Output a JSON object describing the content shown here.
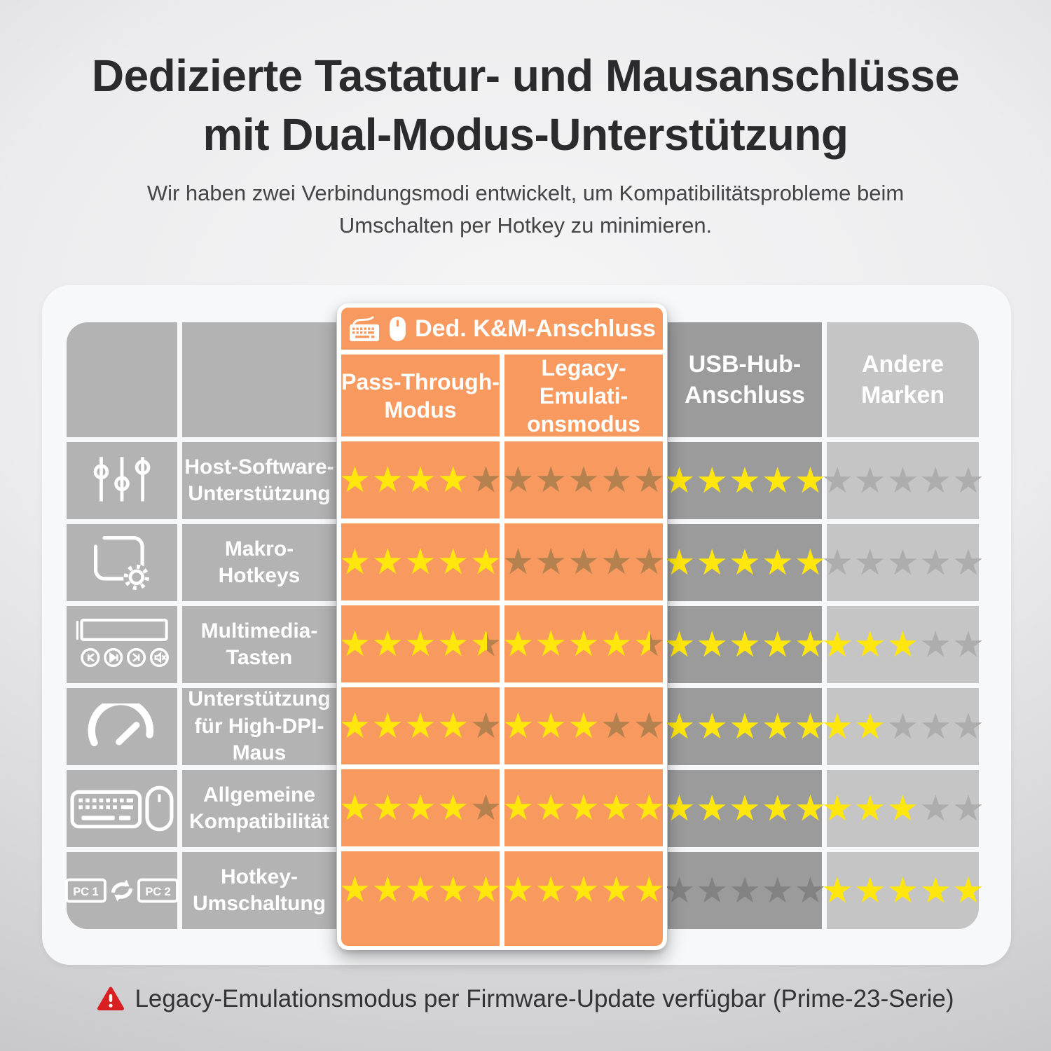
{
  "page": {
    "title_lines": [
      "Dedizierte Tastatur- und Mausanschlüsse",
      "mit Dual-Modus-Unterstützung"
    ],
    "subtitle_lines": [
      "Wir haben zwei Verbindungsmodi entwickelt, um Kompatibilitätsprobleme beim",
      "Umschalten per Hotkey zu minimieren."
    ],
    "footnote": "Legacy-Emulationsmodus per Firmware-Update verfügbar (Prime-23-Serie)",
    "footnote_icon": "warning-icon"
  },
  "colors": {
    "accent_orange": "#f8995f",
    "star_yellow": "#ffe60d",
    "muted_star_on_orange": "#b5814f",
    "muted_star_on_dark_gray": "#828283",
    "muted_star_on_light_gray": "#adadae",
    "cell_gray": "#b3b3b4",
    "usb_column_gray": "#9b9b9c",
    "other_column_gray": "#c5c5c6",
    "warning_red": "#d7201f"
  },
  "table": {
    "group_header": {
      "label": "Ded. K&M-Anschluss",
      "icons": [
        "keyboard-icon",
        "mouse-icon"
      ]
    },
    "columns": [
      {
        "id": "pt",
        "label_lines": [
          "Pass-Through-",
          "Modus"
        ],
        "style": "orange"
      },
      {
        "id": "legacy",
        "label_lines": [
          "Legacy-",
          "Emulati-",
          "onsmodus"
        ],
        "style": "orange"
      },
      {
        "id": "usb",
        "label_lines": [
          "USB-Hub-",
          "Anschluss"
        ],
        "style": "dark-gray"
      },
      {
        "id": "other",
        "label_lines": [
          "Andere",
          "Marken"
        ],
        "style": "light-gray"
      }
    ],
    "rating_max": 5,
    "rows": [
      {
        "icon": "sliders-icon",
        "label_lines": [
          "Host-Software-",
          "Unterstützung"
        ],
        "ratings": {
          "pt": 4,
          "legacy": 0,
          "usb": 5,
          "other": 0
        }
      },
      {
        "icon": "macro-gear-icon",
        "label_lines": [
          "Makro-",
          "Hotkeys"
        ],
        "ratings": {
          "pt": 5,
          "legacy": 0,
          "usb": 5,
          "other": 0
        }
      },
      {
        "icon": "multimedia-keys-icon",
        "label_lines": [
          "Multimedia-",
          "Tasten"
        ],
        "ratings": {
          "pt": 4.5,
          "legacy": 4.5,
          "usb": 5,
          "other": 3
        }
      },
      {
        "icon": "speedometer-icon",
        "label_lines": [
          "Unterstützung",
          "für High-DPI-",
          "Maus"
        ],
        "ratings": {
          "pt": 4,
          "legacy": 3,
          "usb": 5,
          "other": 2
        }
      },
      {
        "icon": "keyboard-mouse-icon",
        "label_lines": [
          "Allgemeine",
          "Kompatibilität"
        ],
        "ratings": {
          "pt": 4,
          "legacy": 5,
          "usb": 5,
          "other": 3
        }
      },
      {
        "icon": "pc-switch-icon",
        "label_lines": [
          "Hotkey-",
          "Umschaltung"
        ],
        "ratings": {
          "pt": 5,
          "legacy": 5,
          "usb": 0,
          "other": 5
        }
      }
    ]
  },
  "chart_data": {
    "type": "table",
    "title": "Dedizierte Tastatur- und Mausanschlüsse mit Dual-Modus-Unterstützung",
    "categories": [
      "Host-Software-Unterstützung",
      "Makro-Hotkeys",
      "Multimedia-Tasten",
      "Unterstützung für High-DPI-Maus",
      "Allgemeine Kompatibilität",
      "Hotkey-Umschaltung"
    ],
    "series": [
      {
        "name": "Ded. K&M-Anschluss – Pass-Through-Modus",
        "values": [
          4,
          5,
          4.5,
          4,
          4,
          5
        ]
      },
      {
        "name": "Ded. K&M-Anschluss – Legacy-Emulationsmodus",
        "values": [
          0,
          0,
          4.5,
          3,
          5,
          5
        ]
      },
      {
        "name": "USB-Hub-Anschluss",
        "values": [
          5,
          5,
          5,
          5,
          5,
          0
        ]
      },
      {
        "name": "Andere Marken",
        "values": [
          0,
          0,
          3,
          2,
          3,
          5
        ]
      }
    ],
    "value_range": [
      0,
      5
    ],
    "unit": "stars"
  }
}
